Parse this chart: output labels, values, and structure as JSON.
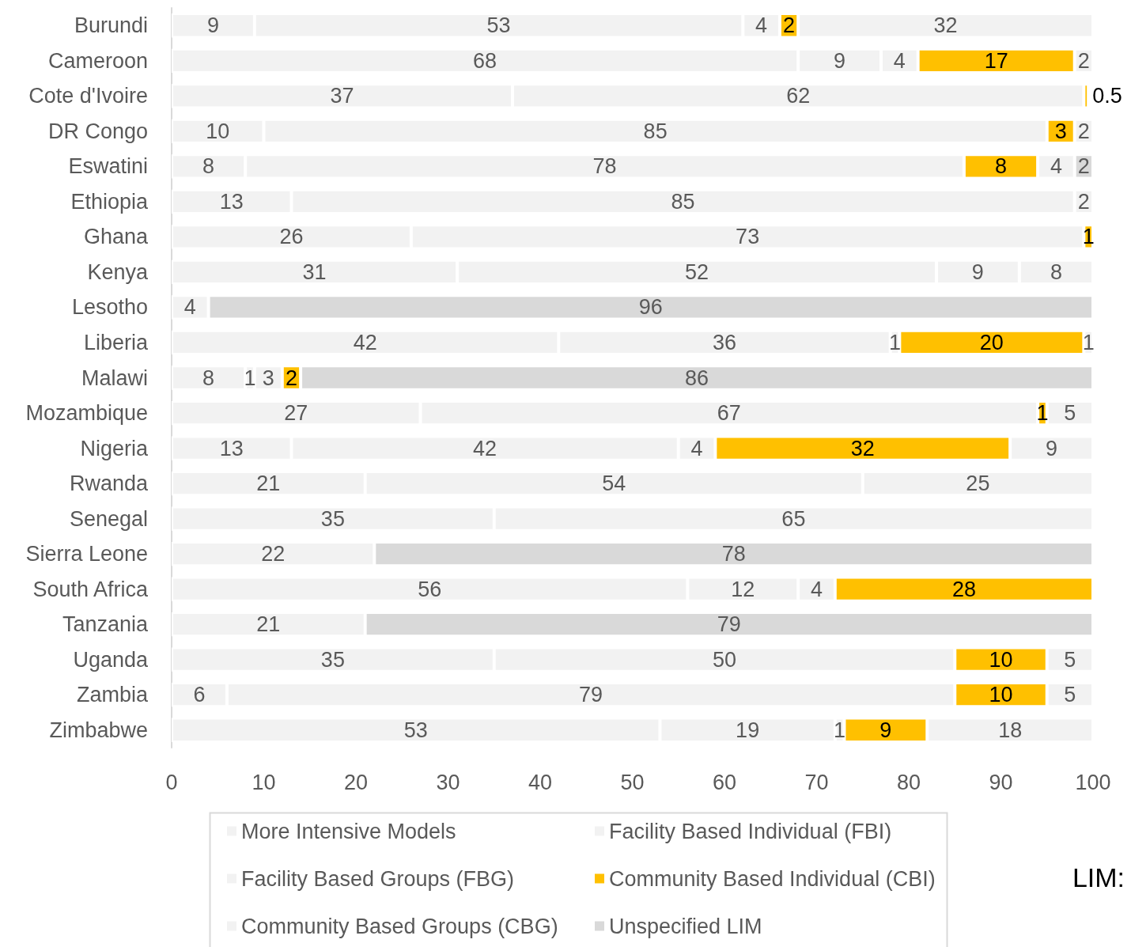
{
  "chart_data": {
    "type": "bar",
    "orientation": "horizontal",
    "stacked": true,
    "data_labels": true,
    "grid": false,
    "legend": "bottom",
    "categories": [
      "Burundi",
      "Cameroon",
      "Cote d'Ivoire",
      "DR Congo",
      "Eswatini",
      "Ethiopia",
      "Ghana",
      "Kenya",
      "Lesotho",
      "Liberia",
      "Malawi",
      "Mozambique",
      "Nigeria",
      "Rwanda",
      "Senegal",
      "Sierra Leone",
      "South Africa",
      "Tanzania",
      "Uganda",
      "Zambia",
      "Zimbabwe"
    ],
    "xlim": [
      0,
      100
    ],
    "xticks": [
      0,
      10,
      20,
      30,
      40,
      50,
      60,
      70,
      80,
      90,
      100
    ],
    "annotations": [
      "LIM:"
    ],
    "series": [
      {
        "name": "More Intensive Models",
        "color": "#f2f2f2",
        "values": [
          9,
          68,
          37,
          10,
          8,
          13,
          26,
          31,
          4,
          42,
          8,
          27,
          13,
          21,
          35,
          22,
          56,
          21,
          35,
          6,
          53
        ]
      },
      {
        "name": "Facility Based Individual (FBI)",
        "color": "#f2f2f2",
        "values": [
          53,
          9,
          62,
          85,
          78,
          85,
          73,
          52,
          null,
          36,
          1,
          67,
          42,
          54,
          65,
          null,
          12,
          null,
          50,
          79,
          19
        ]
      },
      {
        "name": "Facility Based Groups (FBG)",
        "color": "#f2f2f2",
        "values": [
          4,
          4,
          null,
          null,
          null,
          null,
          null,
          9,
          null,
          1,
          3,
          null,
          4,
          null,
          null,
          null,
          4,
          null,
          null,
          null,
          1
        ]
      },
      {
        "name": "Community Based Individual (CBI)",
        "color": "#ffc000",
        "values": [
          2,
          17,
          0.5,
          3,
          8,
          null,
          1,
          null,
          null,
          20,
          2,
          1,
          32,
          null,
          null,
          null,
          28,
          null,
          10,
          10,
          9
        ]
      },
      {
        "name": "Community Based Groups (CBG)",
        "color": "#f2f2f2",
        "values": [
          32,
          2,
          null,
          2,
          4,
          2,
          null,
          8,
          null,
          1,
          null,
          5,
          9,
          25,
          null,
          null,
          null,
          null,
          5,
          5,
          18
        ]
      },
      {
        "name": "Unspecified LIM",
        "color": "#d9d9d9",
        "values": [
          null,
          null,
          null,
          null,
          2,
          null,
          null,
          null,
          96,
          null,
          86,
          null,
          null,
          null,
          null,
          78,
          null,
          79,
          null,
          null,
          null
        ]
      }
    ]
  }
}
